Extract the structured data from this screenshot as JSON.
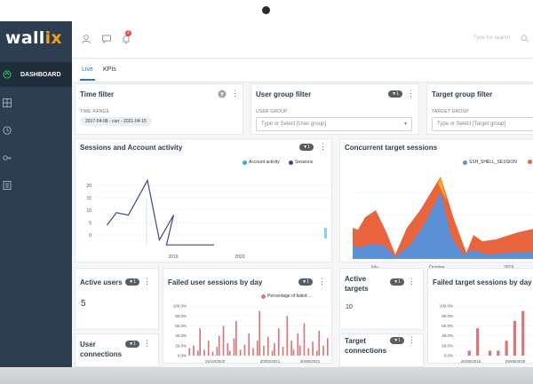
{
  "app": {
    "logo_main": "wall",
    "logo_accent": "ix"
  },
  "sidebar": {
    "items": [
      {
        "label": "DASHBOARD",
        "icon": "dashboard-icon",
        "active": true
      },
      {
        "label": "",
        "icon": "grid-icon"
      },
      {
        "label": "",
        "icon": "clock-icon"
      },
      {
        "label": "",
        "icon": "key-icon"
      },
      {
        "label": "",
        "icon": "report-icon"
      }
    ]
  },
  "topbar": {
    "notification_count": "2",
    "search_placeholder": "Type for search"
  },
  "tabs": [
    {
      "label": "Live",
      "active": true
    },
    {
      "label": "KPIs",
      "active": false
    }
  ],
  "time_filter": {
    "title": "Time filter",
    "range_label": "TIME RANGE",
    "range_value": "2017-04-08 - curr - 2021-04-15"
  },
  "user_group_filter": {
    "title": "User group filter",
    "field_label": "USER GROUP",
    "placeholder": "Type or Select [User group]"
  },
  "target_group_filter": {
    "title": "Target group filter",
    "field_label": "TARGET GROUP",
    "placeholder": "Type or Select [Target group]"
  },
  "sessions_panel": {
    "title": "Sessions and Account activity",
    "ctl": "▼1"
  },
  "concurrent_panel": {
    "title": "Concurrent target sessions",
    "ctl": "▼1"
  },
  "active_users": {
    "title": "Active users",
    "value": "5",
    "ctl": "▼1"
  },
  "failed_user": {
    "title": "Failed user sessions by day",
    "ctl": "▼1"
  },
  "active_targets": {
    "title_line1": "Active",
    "title_line2": "targets",
    "value": "10",
    "ctl": "▼1"
  },
  "failed_target": {
    "title": "Failed target sessions by day"
  },
  "user_connections": {
    "title_line1": "User",
    "title_line2": "connections",
    "ctl": "▼1"
  },
  "target_connections": {
    "title_line1": "Target",
    "title_line2": "connections",
    "ctl": "▼1"
  },
  "chart_data": [
    {
      "type": "line",
      "series": [
        {
          "name": "Account activity",
          "color": "#2fb3d9"
        },
        {
          "name": "Sessions",
          "color": "#3b4a8c"
        }
      ],
      "x_ticks": [
        "2019",
        "2020"
      ],
      "y_ticks": [
        0,
        5,
        10,
        15,
        20
      ],
      "ylim": [
        -5,
        25
      ],
      "points": [
        [
          0.05,
          4
        ],
        [
          0.09,
          9
        ],
        [
          0.14,
          8
        ],
        [
          0.22,
          22
        ],
        [
          0.27,
          -2
        ],
        [
          0.33,
          8
        ],
        [
          0.3,
          -4
        ],
        [
          0.5,
          -4
        ]
      ],
      "grid": true
    },
    {
      "type": "area",
      "series": [
        {
          "name": "SSH_SHELL_SESSION",
          "color": "#5b8fd6"
        },
        {
          "name": "",
          "color": "#e8643c"
        }
      ],
      "x_ticks": [
        "July",
        "October",
        "2019"
      ],
      "grid": true
    },
    {
      "type": "bar",
      "series": [
        {
          "name": "Percentage of failed ...",
          "color": "#d9777a"
        }
      ],
      "y_ticks": [
        "100.0%",
        "80.0%",
        "60.0%",
        "40.0%",
        "20.0%",
        "0.0%"
      ],
      "x_ticks": [
        "15/10/2020",
        "30/03/2021",
        "30/05/2021"
      ],
      "values": [
        15,
        0,
        20,
        0,
        10,
        55,
        0,
        12,
        0,
        30,
        0,
        8,
        0,
        18,
        40,
        0,
        60,
        0,
        25,
        10,
        0,
        35,
        70,
        0,
        12,
        0,
        22,
        0,
        45,
        0,
        15,
        0,
        30,
        90,
        0,
        20,
        0,
        38,
        0,
        10,
        25,
        0,
        55,
        0,
        18,
        0,
        80,
        0,
        30,
        12,
        0,
        45,
        20,
        0,
        65,
        0,
        15,
        0,
        28,
        0,
        10,
        50,
        0,
        20,
        0,
        35
      ],
      "grid": true
    },
    {
      "type": "bar",
      "series": [
        {
          "name": "",
          "color": "#d9777a"
        }
      ],
      "y_ticks": [
        "100.0%",
        "80.0%",
        "60.0%",
        "40.0%",
        "20.0%",
        "0.0%"
      ],
      "x_ticks": [
        "26/06/2018",
        "29/05/2019"
      ],
      "values": [
        0,
        0,
        0,
        10,
        0,
        55,
        0,
        0,
        10,
        0,
        10,
        0,
        30,
        0,
        70,
        0,
        90,
        0,
        0,
        40
      ],
      "grid": true
    }
  ]
}
